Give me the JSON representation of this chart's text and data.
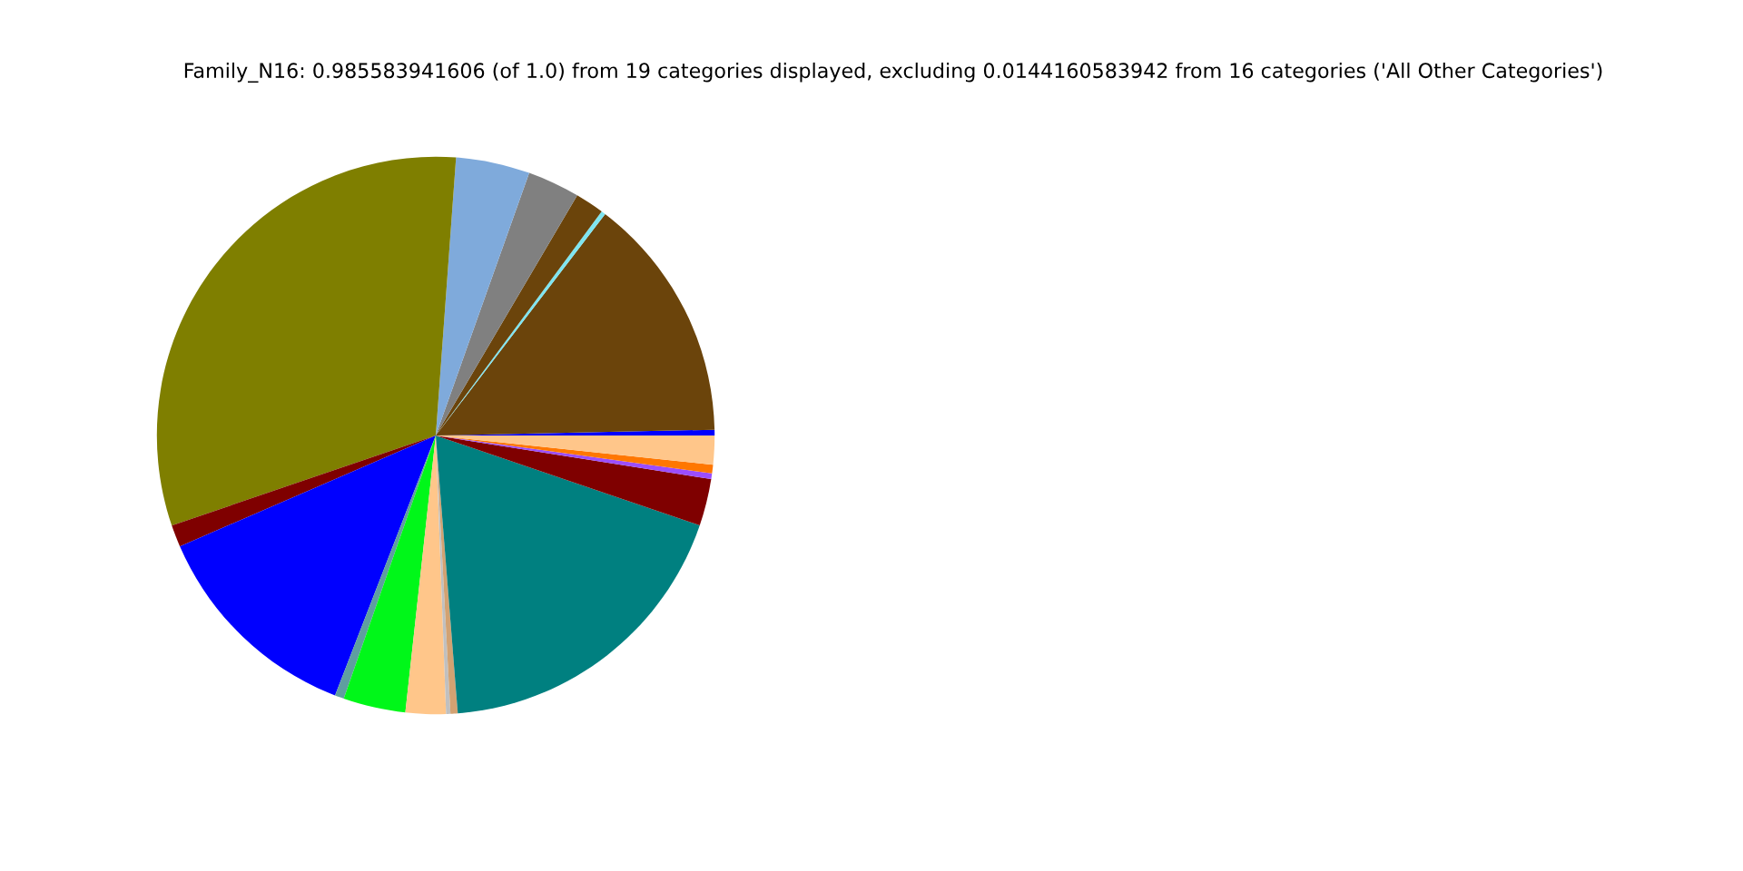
{
  "chart_data": {
    "type": "pie",
    "title": "Family_N16: 0.985583941606 (of 1.0) from 19 categories displayed, excluding 0.0144160583942 from 16 categories ('All Other Categories')",
    "categories": [
      null,
      null,
      null,
      null,
      null,
      null,
      null,
      null,
      null,
      null,
      null,
      null,
      null,
      null,
      null,
      null,
      null,
      null,
      null
    ],
    "values": [
      0.33,
      14.28,
      0.25,
      1.67,
      3.03,
      4.28,
      31.39,
      1.28,
      12.61,
      0.53,
      3.61,
      2.33,
      0.25,
      0.42,
      18.52,
      2.72,
      0.33,
      0.5,
      1.67
    ],
    "colors": [
      "#0000ff",
      "#6b440b",
      "#7ee5f0",
      "#6b440b",
      "#808080",
      "#7faadb",
      "#7f7f00",
      "#7f0000",
      "#0000ff",
      "#5f9ea0",
      "#00f719",
      "#ffc68a",
      "#c0c0c0",
      "#d2a272",
      "#008080",
      "#7f0000",
      "#9b4dff",
      "#ff7700",
      "#ffc68a"
    ]
  }
}
